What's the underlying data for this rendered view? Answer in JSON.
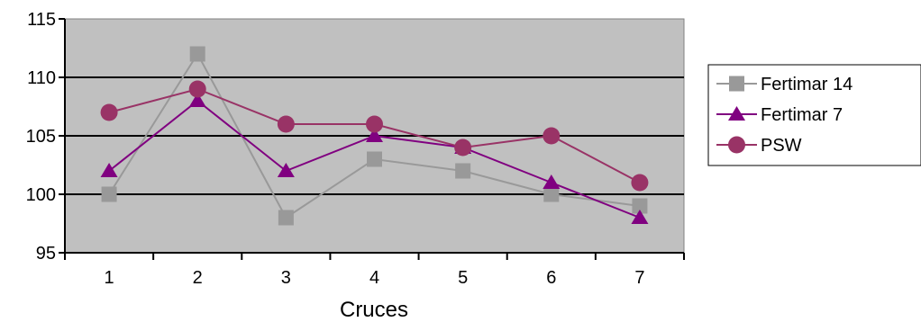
{
  "chart_data": {
    "type": "line",
    "categories": [
      "1",
      "2",
      "3",
      "4",
      "5",
      "6",
      "7"
    ],
    "xlabel": "Cruces",
    "ylabel": "",
    "ylim": [
      95,
      115
    ],
    "yticks": [
      95,
      100,
      105,
      110,
      115
    ],
    "grid": "horizontal",
    "plot_background": "#c0c0c0",
    "legend_position": "right",
    "series": [
      {
        "name": "Fertimar 14",
        "values": [
          100,
          112,
          98,
          103,
          102,
          100,
          99
        ],
        "color": "#999999",
        "marker": "square"
      },
      {
        "name": "Fertimar 7",
        "values": [
          102,
          108,
          102,
          105,
          104,
          101,
          98
        ],
        "color": "#800080",
        "marker": "triangle"
      },
      {
        "name": "PSW",
        "values": [
          107,
          109,
          106,
          106,
          104,
          105,
          101
        ],
        "color": "#993366",
        "marker": "circle"
      }
    ]
  }
}
